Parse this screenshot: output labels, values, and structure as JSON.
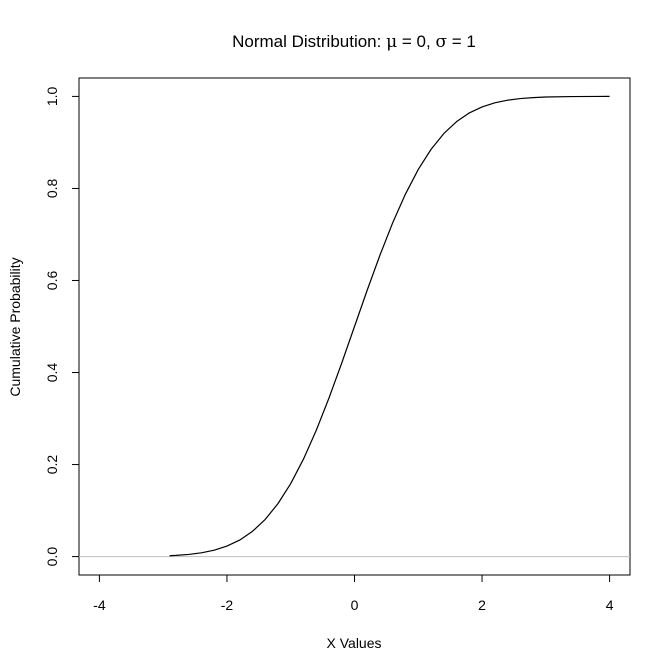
{
  "chart_data": {
    "type": "line",
    "title": {
      "prefix": "Normal Distribution: ",
      "mu_symbol": "μ",
      "mu_text": " = 0, ",
      "sigma_symbol": "σ",
      "sigma_text": " = 1"
    },
    "xlabel": "X Values",
    "ylabel": "Cumulative Probability",
    "xlim": [
      -4.32,
      4.32
    ],
    "ylim": [
      -0.04,
      1.04
    ],
    "x_ticks": [
      -4,
      -2,
      0,
      2,
      4
    ],
    "x_tick_labels": [
      "-4",
      "-2",
      "0",
      "2",
      "4"
    ],
    "y_ticks": [
      0,
      0.2,
      0.4,
      0.6,
      0.8,
      1.0
    ],
    "y_tick_labels": [
      "0.0",
      "0.2",
      "0.4",
      "0.6",
      "0.8",
      "1.0"
    ],
    "grid": false,
    "reference_line": {
      "y": 0,
      "color": "#bebebe"
    },
    "series": [
      {
        "color": "#000000",
        "x": [
          -2.9,
          -2.8,
          -2.6,
          -2.4,
          -2.2,
          -2.0,
          -1.8,
          -1.6,
          -1.4,
          -1.2,
          -1.0,
          -0.8,
          -0.6,
          -0.4,
          -0.2,
          0.0,
          0.2,
          0.4,
          0.6,
          0.8,
          1.0,
          1.2,
          1.4,
          1.6,
          1.8,
          2.0,
          2.2,
          2.4,
          2.6,
          2.8,
          3.0,
          3.4,
          3.8,
          4.0
        ],
        "y": [
          0.0019,
          0.0026,
          0.0047,
          0.0082,
          0.0139,
          0.0228,
          0.0359,
          0.0548,
          0.0808,
          0.1151,
          0.1587,
          0.2119,
          0.2743,
          0.3446,
          0.4207,
          0.5,
          0.5793,
          0.6554,
          0.7257,
          0.7881,
          0.8413,
          0.8849,
          0.9192,
          0.9452,
          0.9641,
          0.9772,
          0.9861,
          0.9918,
          0.9953,
          0.9974,
          0.9987,
          0.9997,
          0.9999,
          1.0
        ]
      }
    ]
  }
}
